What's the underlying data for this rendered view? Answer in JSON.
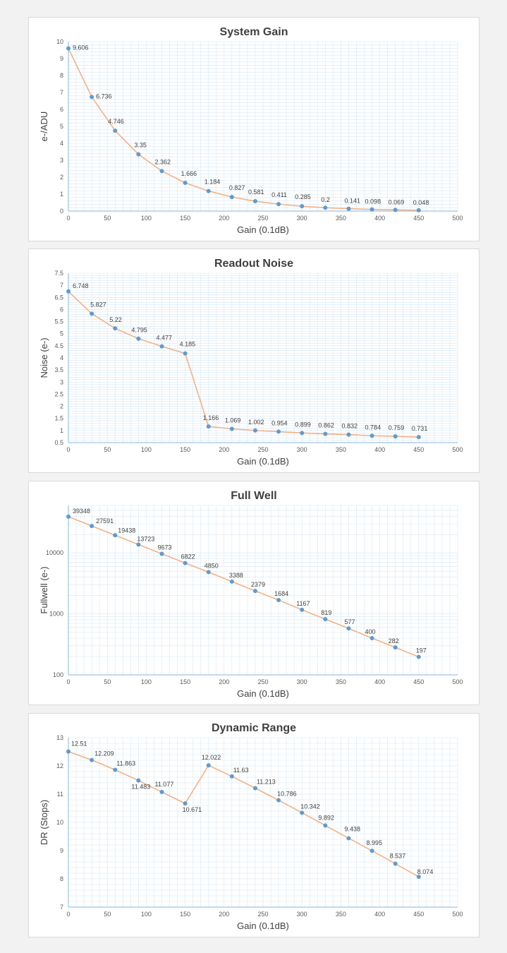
{
  "colors": {
    "line": "#f4b183",
    "marker": "#5b9bd5",
    "grid": "#d6e7f5",
    "axis": "#9dc3e6"
  },
  "chart_data": [
    {
      "type": "line",
      "title": "System Gain",
      "xlabel": "Gain (0.1dB)",
      "ylabel": "e-/ADU",
      "xlim": [
        0,
        500
      ],
      "ylim": [
        0,
        10
      ],
      "yscale": "linear",
      "xticks": [
        0,
        50,
        100,
        150,
        200,
        250,
        300,
        350,
        400,
        450,
        500
      ],
      "yticks": [
        0,
        1,
        2,
        3,
        4,
        5,
        6,
        7,
        8,
        9,
        10
      ],
      "ytick_labels": [
        "0",
        "1",
        "2",
        "3",
        "4",
        "5",
        "6",
        "7",
        "8",
        "9",
        "10"
      ],
      "x": [
        0,
        30,
        60,
        90,
        120,
        150,
        180,
        210,
        240,
        270,
        300,
        330,
        360,
        390,
        420,
        450
      ],
      "values": [
        9.606,
        6.736,
        4.746,
        3.35,
        2.362,
        1.666,
        1.184,
        0.827,
        0.581,
        0.411,
        0.285,
        0.2,
        0.141,
        0.098,
        0.069,
        0.048
      ],
      "labels": [
        "9.606",
        "6.736",
        "4.746",
        "3.35",
        "2.362",
        "1.666",
        "1.184",
        "0.827",
        "0.581",
        "0.411",
        "0.285",
        "0.2",
        "0.141",
        "0.098",
        "0.069",
        "0.048"
      ]
    },
    {
      "type": "line",
      "title": "Readout Noise",
      "xlabel": "Gain (0.1dB)",
      "ylabel": "Noise (e-)",
      "xlim": [
        0,
        500
      ],
      "ylim": [
        0.5,
        7.5
      ],
      "yscale": "linear",
      "xticks": [
        0,
        50,
        100,
        150,
        200,
        250,
        300,
        350,
        400,
        450,
        500
      ],
      "yticks": [
        0.5,
        1,
        1.5,
        2,
        2.5,
        3,
        3.5,
        4,
        4.5,
        5,
        5.5,
        6,
        6.5,
        7,
        7.5
      ],
      "ytick_labels": [
        "0.5",
        "1",
        "1.5",
        "2",
        "2.5",
        "3",
        "3.5",
        "4",
        "4.5",
        "5",
        "5.5",
        "6",
        "6.5",
        "7",
        "7.5"
      ],
      "x": [
        0,
        30,
        60,
        90,
        120,
        150,
        180,
        210,
        240,
        270,
        300,
        330,
        360,
        390,
        420,
        450
      ],
      "values": [
        6.748,
        5.827,
        5.22,
        4.795,
        4.477,
        4.185,
        1.166,
        1.069,
        1.002,
        0.954,
        0.899,
        0.862,
        0.832,
        0.784,
        0.759,
        0.731
      ],
      "labels": [
        "6.748",
        "5.827",
        "5.22",
        "4.795",
        "4.477",
        "4.185",
        "1.166",
        "1.069",
        "1.002",
        "0.954",
        "0.899",
        "0.862",
        "0.832",
        "0.784",
        "0.759",
        "0.731"
      ]
    },
    {
      "type": "line",
      "title": "Full Well",
      "xlabel": "Gain (0.1dB)",
      "ylabel": "Fullwell (e-)",
      "xlim": [
        0,
        500
      ],
      "ylim": [
        100,
        60000
      ],
      "yscale": "log",
      "xticks": [
        0,
        50,
        100,
        150,
        200,
        250,
        300,
        350,
        400,
        450,
        500
      ],
      "yticks": [
        100,
        1000,
        10000
      ],
      "ytick_labels": [
        "100",
        "1000",
        "10000"
      ],
      "x": [
        0,
        30,
        60,
        90,
        120,
        150,
        180,
        210,
        240,
        270,
        300,
        330,
        360,
        390,
        420,
        450
      ],
      "values": [
        39348,
        27591,
        19438,
        13723,
        9673,
        6822,
        4850,
        3388,
        2379,
        1684,
        1167,
        819,
        577,
        400,
        282,
        197
      ],
      "labels": [
        "39348",
        "27591",
        "19438",
        "13723",
        "9673",
        "6822",
        "4850",
        "3388",
        "2379",
        "1684",
        "1167",
        "819",
        "577",
        "400",
        "282",
        "197"
      ]
    },
    {
      "type": "line",
      "title": "Dynamic Range",
      "xlabel": "Gain (0.1dB)",
      "ylabel": "DR (Stops)",
      "xlim": [
        0,
        500
      ],
      "ylim": [
        7,
        13
      ],
      "yscale": "linear",
      "xticks": [
        0,
        50,
        100,
        150,
        200,
        250,
        300,
        350,
        400,
        450,
        500
      ],
      "yticks": [
        7,
        8,
        9,
        10,
        11,
        12,
        13
      ],
      "ytick_labels": [
        "7",
        "8",
        "9",
        "10",
        "11",
        "12",
        "13"
      ],
      "x": [
        0,
        30,
        60,
        90,
        120,
        150,
        180,
        210,
        240,
        270,
        300,
        330,
        360,
        390,
        420,
        450
      ],
      "values": [
        12.51,
        12.209,
        11.863,
        11.483,
        11.077,
        10.671,
        12.022,
        11.63,
        11.213,
        10.786,
        10.342,
        9.892,
        9.438,
        8.995,
        8.537,
        8.074
      ],
      "labels": [
        "12.51",
        "12.209",
        "11.863",
        "11.483",
        "11.077",
        "10.671",
        "12.022",
        "11.63",
        "11.213",
        "10.786",
        "10.342",
        "9.892",
        "9.438",
        "8.995",
        "8.537",
        "8.074"
      ]
    }
  ]
}
